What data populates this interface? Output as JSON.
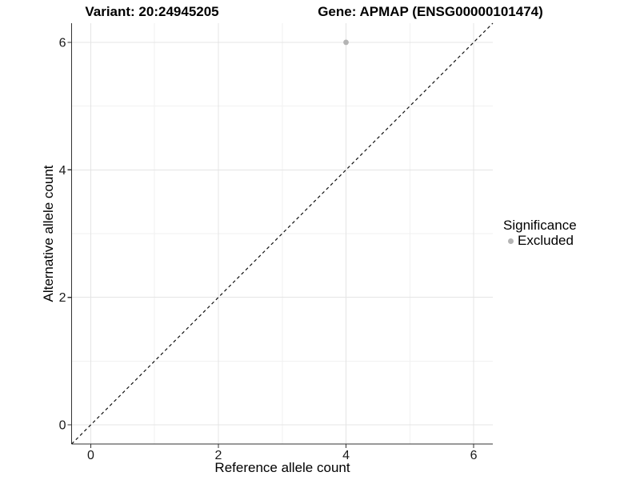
{
  "chart_data": {
    "type": "scatter",
    "title_variant": "Variant: 20:24945205",
    "title_gene": "Gene: APMAP (ENSG00000101474)",
    "xlabel": "Reference allele count",
    "ylabel": "Alternative allele count",
    "xlim": [
      -0.3,
      6.3
    ],
    "ylim": [
      -0.3,
      6.3
    ],
    "x_breaks": [
      0,
      2,
      4,
      6
    ],
    "y_breaks": [
      0,
      2,
      4,
      6
    ],
    "x_minor_breaks": [
      1,
      3,
      5
    ],
    "y_minor_breaks": [
      1,
      3,
      5
    ],
    "grid": true,
    "points": [
      {
        "x": 4,
        "y": 6,
        "significance": "Excluded"
      }
    ],
    "abline": {
      "slope": 1,
      "intercept": 0,
      "style": "dashed",
      "color": "#111111"
    },
    "legend": {
      "title": "Significance",
      "position": "right",
      "items": [
        {
          "label": "Excluded",
          "color": "#b4b4b4"
        }
      ]
    },
    "colors": {
      "grid_major": "#e4e4e4",
      "grid_minor": "#f1f1f1",
      "axis_line": "#333333",
      "tick_label": "#1a1a1a",
      "panel_background": "#ffffff"
    }
  }
}
